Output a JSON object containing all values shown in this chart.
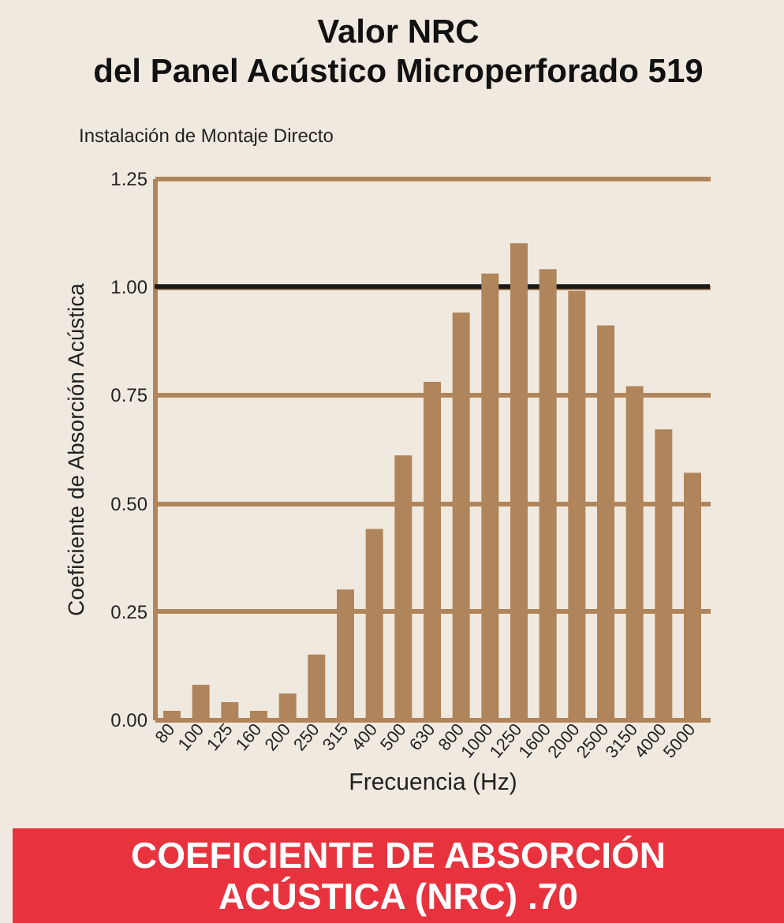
{
  "chart_data": {
    "type": "bar",
    "title": "Valor NRC\ndel Panel Acústico Microperforado 519",
    "subtitle": "Instalación de Montaje Directo",
    "xlabel": "Frecuencia (Hz)",
    "ylabel": "Coeficiente de Absorción Acústica",
    "categories": [
      "80",
      "100",
      "125",
      "160",
      "200",
      "250",
      "315",
      "400",
      "500",
      "630",
      "800",
      "1000",
      "1250",
      "1600",
      "2000",
      "2500",
      "3150",
      "4000",
      "5000"
    ],
    "values": [
      0.02,
      0.08,
      0.04,
      0.02,
      0.06,
      0.15,
      0.3,
      0.44,
      0.61,
      0.78,
      0.94,
      1.03,
      1.1,
      1.04,
      0.99,
      0.91,
      0.77,
      0.67,
      0.57
    ],
    "color": "#b0855b",
    "ylim": [
      0,
      1.25
    ],
    "yticks": [
      {
        "value": 0,
        "label": "0.00"
      },
      {
        "value": 0.25,
        "label": "0.25"
      },
      {
        "value": 0.5,
        "label": "0.50"
      },
      {
        "value": 0.75,
        "label": "0.75"
      },
      {
        "value": 1,
        "label": "1.00"
      },
      {
        "value": 1.25,
        "label": "1.25"
      }
    ],
    "grid": "y",
    "ref_lines": [
      {
        "axis": "y",
        "value": 1,
        "color": "#1a1a1a"
      }
    ],
    "annotations": [
      "COEFICIENTE DE ABSORCIÓN ACÚSTICA (NRC) .70"
    ]
  }
}
